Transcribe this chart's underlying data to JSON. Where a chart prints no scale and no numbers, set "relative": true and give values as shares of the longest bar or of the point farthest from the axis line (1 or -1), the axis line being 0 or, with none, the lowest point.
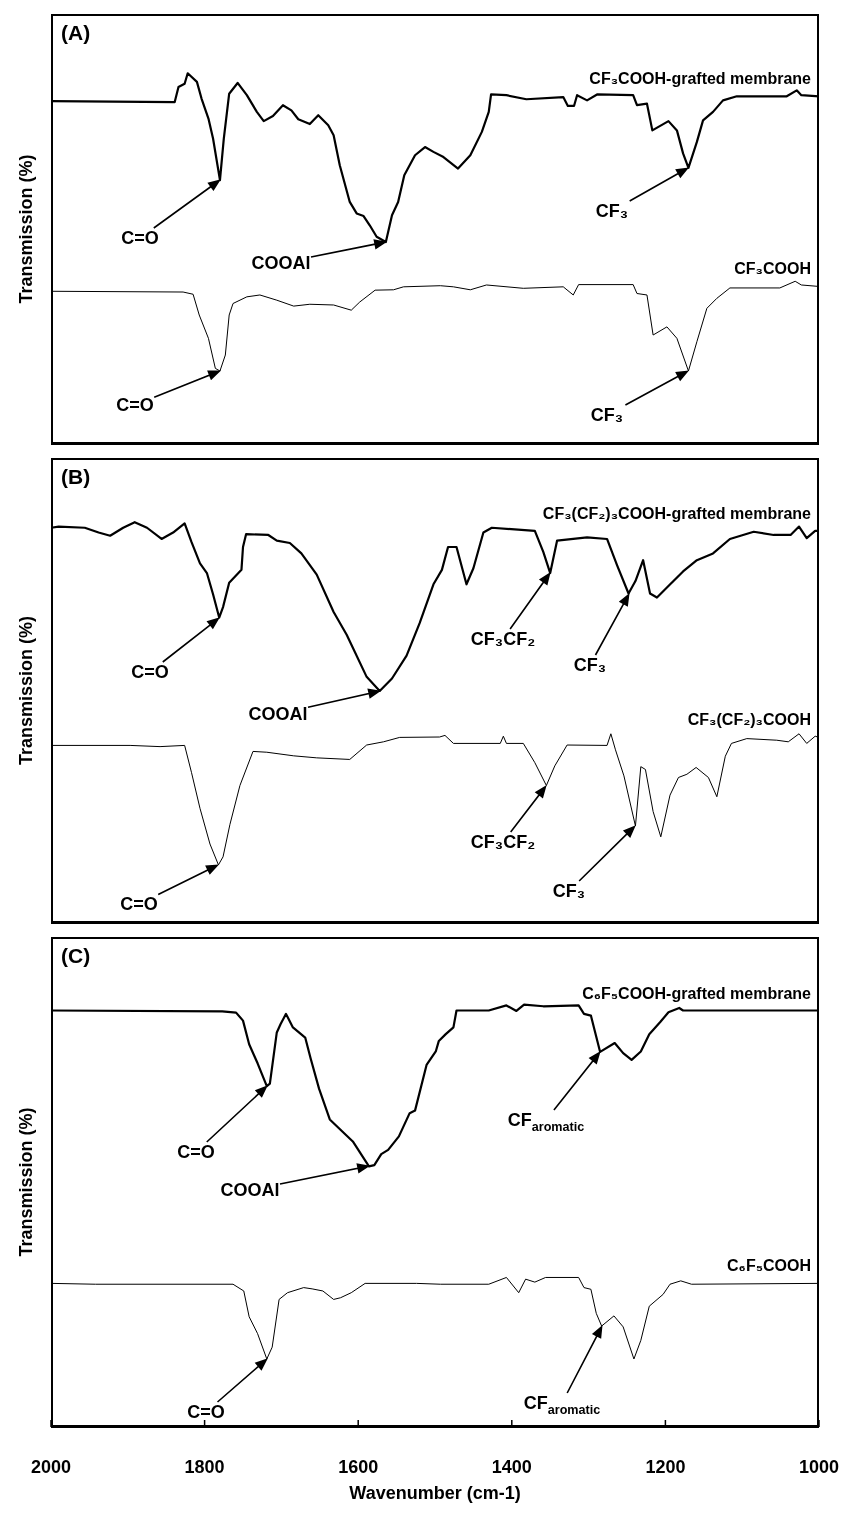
{
  "chart_data": [
    {
      "type": "line",
      "title": "(A)",
      "ylabel": "Transmission (%)",
      "relative": true,
      "xlim": [
        2000,
        1000
      ],
      "xticks": [
        2000,
        1800,
        1600,
        1400,
        1200,
        1000
      ],
      "tick_labels": false,
      "series": [
        {
          "name": "CF₃COOH-grafted membrane",
          "color": "#000000",
          "x": [
            2000,
            1839,
            1834,
            1826,
            1822,
            1810,
            1804,
            1795,
            1789,
            1780,
            1775,
            1768,
            1757,
            1745,
            1732,
            1723,
            1711,
            1698,
            1687,
            1678,
            1663,
            1652,
            1639,
            1632,
            1624,
            1611,
            1602,
            1593,
            1585,
            1576,
            1564,
            1556,
            1548,
            1540,
            1526,
            1513,
            1502,
            1489,
            1470,
            1454,
            1439,
            1430,
            1427,
            1407,
            1381,
            1333,
            1327,
            1319,
            1315,
            1302,
            1289,
            1242,
            1237,
            1224,
            1217,
            1196,
            1185,
            1177,
            1170,
            1159,
            1151,
            1138,
            1125,
            1107,
            1042,
            1029,
            1023,
            1000
          ],
          "values": [
            0.925,
            0.922,
            0.963,
            0.972,
            1,
            0.977,
            0.932,
            0.878,
            0.824,
            0.712,
            0.824,
            0.945,
            0.974,
            0.941,
            0.896,
            0.871,
            0.885,
            0.914,
            0.9,
            0.876,
            0.863,
            0.887,
            0.86,
            0.833,
            0.752,
            0.653,
            0.622,
            0.615,
            0.59,
            0.559,
            0.545,
            0.617,
            0.653,
            0.725,
            0.779,
            0.801,
            0.788,
            0.774,
            0.743,
            0.779,
            0.842,
            0.896,
            0.943,
            0.941,
            0.93,
            0.936,
            0.912,
            0.912,
            0.941,
            0.927,
            0.943,
            0.941,
            0.914,
            0.918,
            0.846,
            0.871,
            0.846,
            0.784,
            0.745,
            0.815,
            0.873,
            0.896,
            0.927,
            0.938,
            0.938,
            0.954,
            0.941,
            0.938
          ]
        },
        {
          "name": "CF₃COOH",
          "color": "#000000",
          "x": [
            2000,
            1828,
            1815,
            1807,
            1795,
            1786,
            1780,
            1773,
            1768,
            1763,
            1745,
            1728,
            1706,
            1684,
            1663,
            1632,
            1609,
            1598,
            1578,
            1554,
            1541,
            1493,
            1476,
            1454,
            1433,
            1385,
            1333,
            1320,
            1313,
            1242,
            1237,
            1224,
            1216,
            1198,
            1185,
            1170,
            1159,
            1146,
            1133,
            1116,
            1051,
            1031,
            1023,
            1000
          ],
          "values": [
            0.412,
            0.41,
            0.404,
            0.348,
            0.285,
            0.204,
            0.197,
            0.24,
            0.348,
            0.379,
            0.397,
            0.402,
            0.388,
            0.372,
            0.377,
            0.375,
            0.361,
            0.383,
            0.415,
            0.416,
            0.424,
            0.427,
            0.424,
            0.416,
            0.429,
            0.42,
            0.424,
            0.402,
            0.43,
            0.43,
            0.406,
            0.402,
            0.294,
            0.316,
            0.285,
            0.197,
            0.276,
            0.366,
            0.393,
            0.421,
            0.421,
            0.439,
            0.429,
            0.425
          ]
        }
      ],
      "annotations": [
        "C=O",
        "COOAl",
        "CF₃",
        "C=O",
        "CF₃"
      ]
    },
    {
      "type": "line",
      "title": "(B)",
      "ylabel": "Transmission (%)",
      "relative": true,
      "xlim": [
        2000,
        1000
      ],
      "xticks": [
        2000,
        1800,
        1600,
        1400,
        1200,
        1000
      ],
      "tick_labels": false,
      "series": [
        {
          "name": "CF₃(CF₂)₃COOH-grafted membrane",
          "color": "#000000",
          "x": [
            2000,
            1990,
            1956,
            1938,
            1923,
            1906,
            1891,
            1875,
            1856,
            1841,
            1826,
            1817,
            1806,
            1797,
            1789,
            1781,
            1776,
            1768,
            1752,
            1750,
            1746,
            1717,
            1706,
            1689,
            1674,
            1654,
            1632,
            1615,
            1589,
            1572,
            1556,
            1537,
            1520,
            1502,
            1491,
            1483,
            1472,
            1459,
            1450,
            1437,
            1426,
            1370,
            1359,
            1350,
            1341,
            1302,
            1276,
            1263,
            1248,
            1239,
            1229,
            1220,
            1211,
            1198,
            1177,
            1159,
            1138,
            1116,
            1085,
            1059,
            1037,
            1026,
            1016,
            1005,
            1000
          ],
          "values": [
            0.986,
            0.989,
            0.986,
            0.974,
            0.966,
            0.986,
            1,
            0.986,
            0.958,
            0.974,
            0.997,
            0.95,
            0.897,
            0.873,
            0.82,
            0.762,
            0.788,
            0.849,
            0.881,
            0.938,
            0.97,
            0.968,
            0.954,
            0.948,
            0.922,
            0.869,
            0.776,
            0.719,
            0.614,
            0.579,
            0.61,
            0.667,
            0.748,
            0.845,
            0.881,
            0.938,
            0.938,
            0.845,
            0.885,
            0.974,
            0.986,
            0.978,
            0.926,
            0.873,
            0.954,
            0.962,
            0.958,
            0.893,
            0.822,
            0.853,
            0.905,
            0.822,
            0.812,
            0.837,
            0.877,
            0.905,
            0.922,
            0.958,
            0.976,
            0.968,
            0.968,
            0.989,
            0.96,
            0.978,
            0.978
          ]
        },
        {
          "name": "CF₃(CF₂)₃COOH",
          "color": "#000000",
          "x": [
            2000,
            1897,
            1858,
            1826,
            1817,
            1806,
            1793,
            1782,
            1776,
            1767,
            1754,
            1737,
            1719,
            1684,
            1654,
            1611,
            1589,
            1567,
            1546,
            1494,
            1487,
            1476,
            1415,
            1411,
            1407,
            1385,
            1370,
            1355,
            1344,
            1328,
            1276,
            1271,
            1265,
            1254,
            1239,
            1232,
            1226,
            1216,
            1206,
            1194,
            1183,
            1172,
            1160,
            1144,
            1133,
            1122,
            1114,
            1094,
            1055,
            1040,
            1026,
            1016,
            1005,
            1000
          ],
          "values": [
            0.443,
            0.443,
            0.44,
            0.443,
            0.375,
            0.286,
            0.197,
            0.145,
            0.165,
            0.246,
            0.343,
            0.428,
            0.426,
            0.417,
            0.412,
            0.408,
            0.444,
            0.452,
            0.463,
            0.464,
            0.468,
            0.448,
            0.448,
            0.466,
            0.448,
            0.448,
            0.4,
            0.343,
            0.392,
            0.444,
            0.443,
            0.472,
            0.432,
            0.367,
            0.242,
            0.39,
            0.383,
            0.278,
            0.215,
            0.319,
            0.363,
            0.371,
            0.388,
            0.363,
            0.315,
            0.416,
            0.448,
            0.46,
            0.456,
            0.452,
            0.472,
            0.448,
            0.466,
            0.463
          ]
        }
      ],
      "annotations": [
        "C=O",
        "COOAl",
        "CF₃CF₂",
        "CF₃",
        "CF₃CF₂",
        "CF₃",
        "C=O"
      ]
    },
    {
      "type": "line",
      "title": "(C)",
      "ylabel": "Transmission (%)",
      "xlabel": "Wavenumber (cm-1)",
      "relative": true,
      "xlim": [
        2000,
        1000
      ],
      "xticks": [
        2000,
        1800,
        1600,
        1400,
        1200,
        1000
      ],
      "tick_labels": "x",
      "series": [
        {
          "name": "C₆F₅COOH-grafted membrane",
          "color": "#000000",
          "x": [
            2000,
            1777,
            1759,
            1750,
            1742,
            1731,
            1719,
            1715,
            1706,
            1701,
            1694,
            1685,
            1669,
            1662,
            1651,
            1637,
            1621,
            1607,
            1586,
            1579,
            1570,
            1561,
            1547,
            1533,
            1526,
            1511,
            1499,
            1495,
            1486,
            1476,
            1472,
            1430,
            1407,
            1394,
            1384,
            1359,
            1313,
            1306,
            1297,
            1292,
            1285,
            1266,
            1255,
            1244,
            1232,
            1221,
            1207,
            1196,
            1182,
            1177,
            1000
          ],
          "values": [
            0.986,
            0.984,
            0.981,
            0.962,
            0.906,
            0.861,
            0.807,
            0.813,
            0.934,
            0.954,
            0.978,
            0.946,
            0.922,
            0.873,
            0.801,
            0.728,
            0.7,
            0.676,
            0.617,
            0.62,
            0.646,
            0.656,
            0.688,
            0.743,
            0.749,
            0.857,
            0.889,
            0.914,
            0.93,
            0.946,
            0.986,
            0.986,
            0.998,
            0.985,
            1,
            0.996,
            0.998,
            0.978,
            0.974,
            0.938,
            0.888,
            0.909,
            0.885,
            0.869,
            0.889,
            0.93,
            0.958,
            0.982,
            0.992,
            0.986,
            0.986
          ]
        },
        {
          "name": "C₆F₅COOH",
          "color": "#000000",
          "x": [
            2000,
            1942,
            1763,
            1749,
            1742,
            1731,
            1719,
            1712,
            1703,
            1692,
            1671,
            1660,
            1646,
            1632,
            1623,
            1609,
            1591,
            1524,
            1493,
            1430,
            1407,
            1391,
            1382,
            1370,
            1356,
            1313,
            1306,
            1297,
            1290,
            1283,
            1267,
            1255,
            1241,
            1232,
            1221,
            1203,
            1194,
            1180,
            1166,
            1000
          ],
          "values": [
            0.34,
            0.338,
            0.338,
            0.322,
            0.261,
            0.221,
            0.161,
            0.189,
            0.302,
            0.318,
            0.33,
            0.327,
            0.322,
            0.302,
            0.306,
            0.318,
            0.34,
            0.34,
            0.338,
            0.338,
            0.354,
            0.318,
            0.35,
            0.343,
            0.354,
            0.354,
            0.33,
            0.326,
            0.269,
            0.239,
            0.263,
            0.237,
            0.161,
            0.205,
            0.286,
            0.314,
            0.338,
            0.346,
            0.338,
            0.34
          ]
        }
      ],
      "annotations": [
        "C=O",
        "COOAl",
        "CF$_{aromatic}$",
        "C=O",
        "CF$_{aromatic}$"
      ]
    }
  ]
}
